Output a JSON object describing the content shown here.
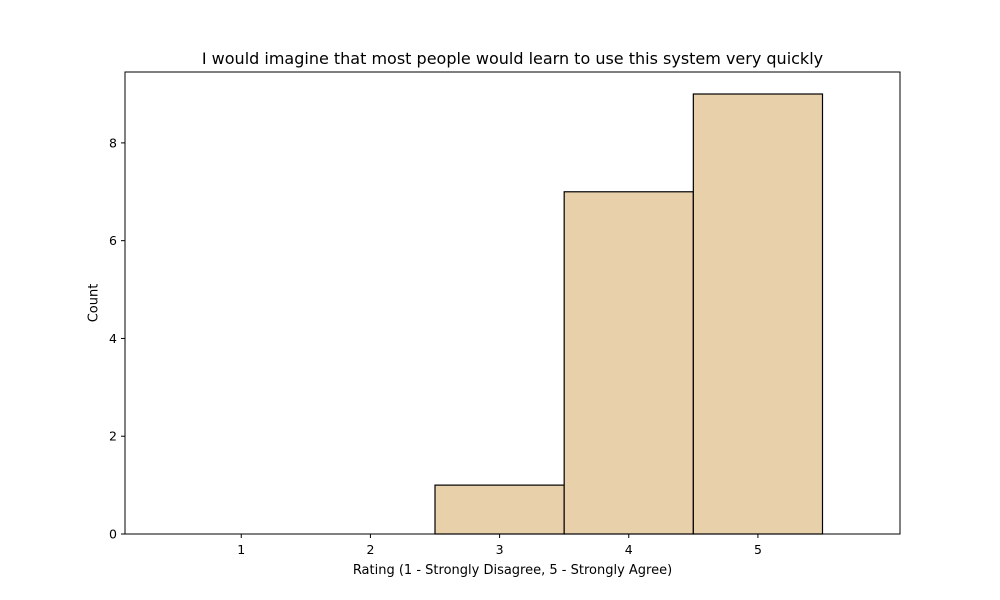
{
  "chart_data": {
    "type": "bar",
    "title": "I would imagine that most people would learn to use this system very quickly",
    "xlabel": "Rating (1 - Strongly Disagree, 5 - Strongly Agree)",
    "ylabel": "Count",
    "categories": [
      "1",
      "2",
      "3",
      "4",
      "5"
    ],
    "x": [
      1,
      2,
      3,
      4,
      5
    ],
    "values": [
      0,
      0,
      1,
      7,
      9
    ],
    "xlim": [
      0.1,
      6.1
    ],
    "ylim": [
      0,
      9.45
    ],
    "yticks": [
      0,
      2,
      4,
      6,
      8
    ],
    "bar_color": "#e8d0ab",
    "edge_color": "#000000",
    "grid": false,
    "legend": "none"
  }
}
